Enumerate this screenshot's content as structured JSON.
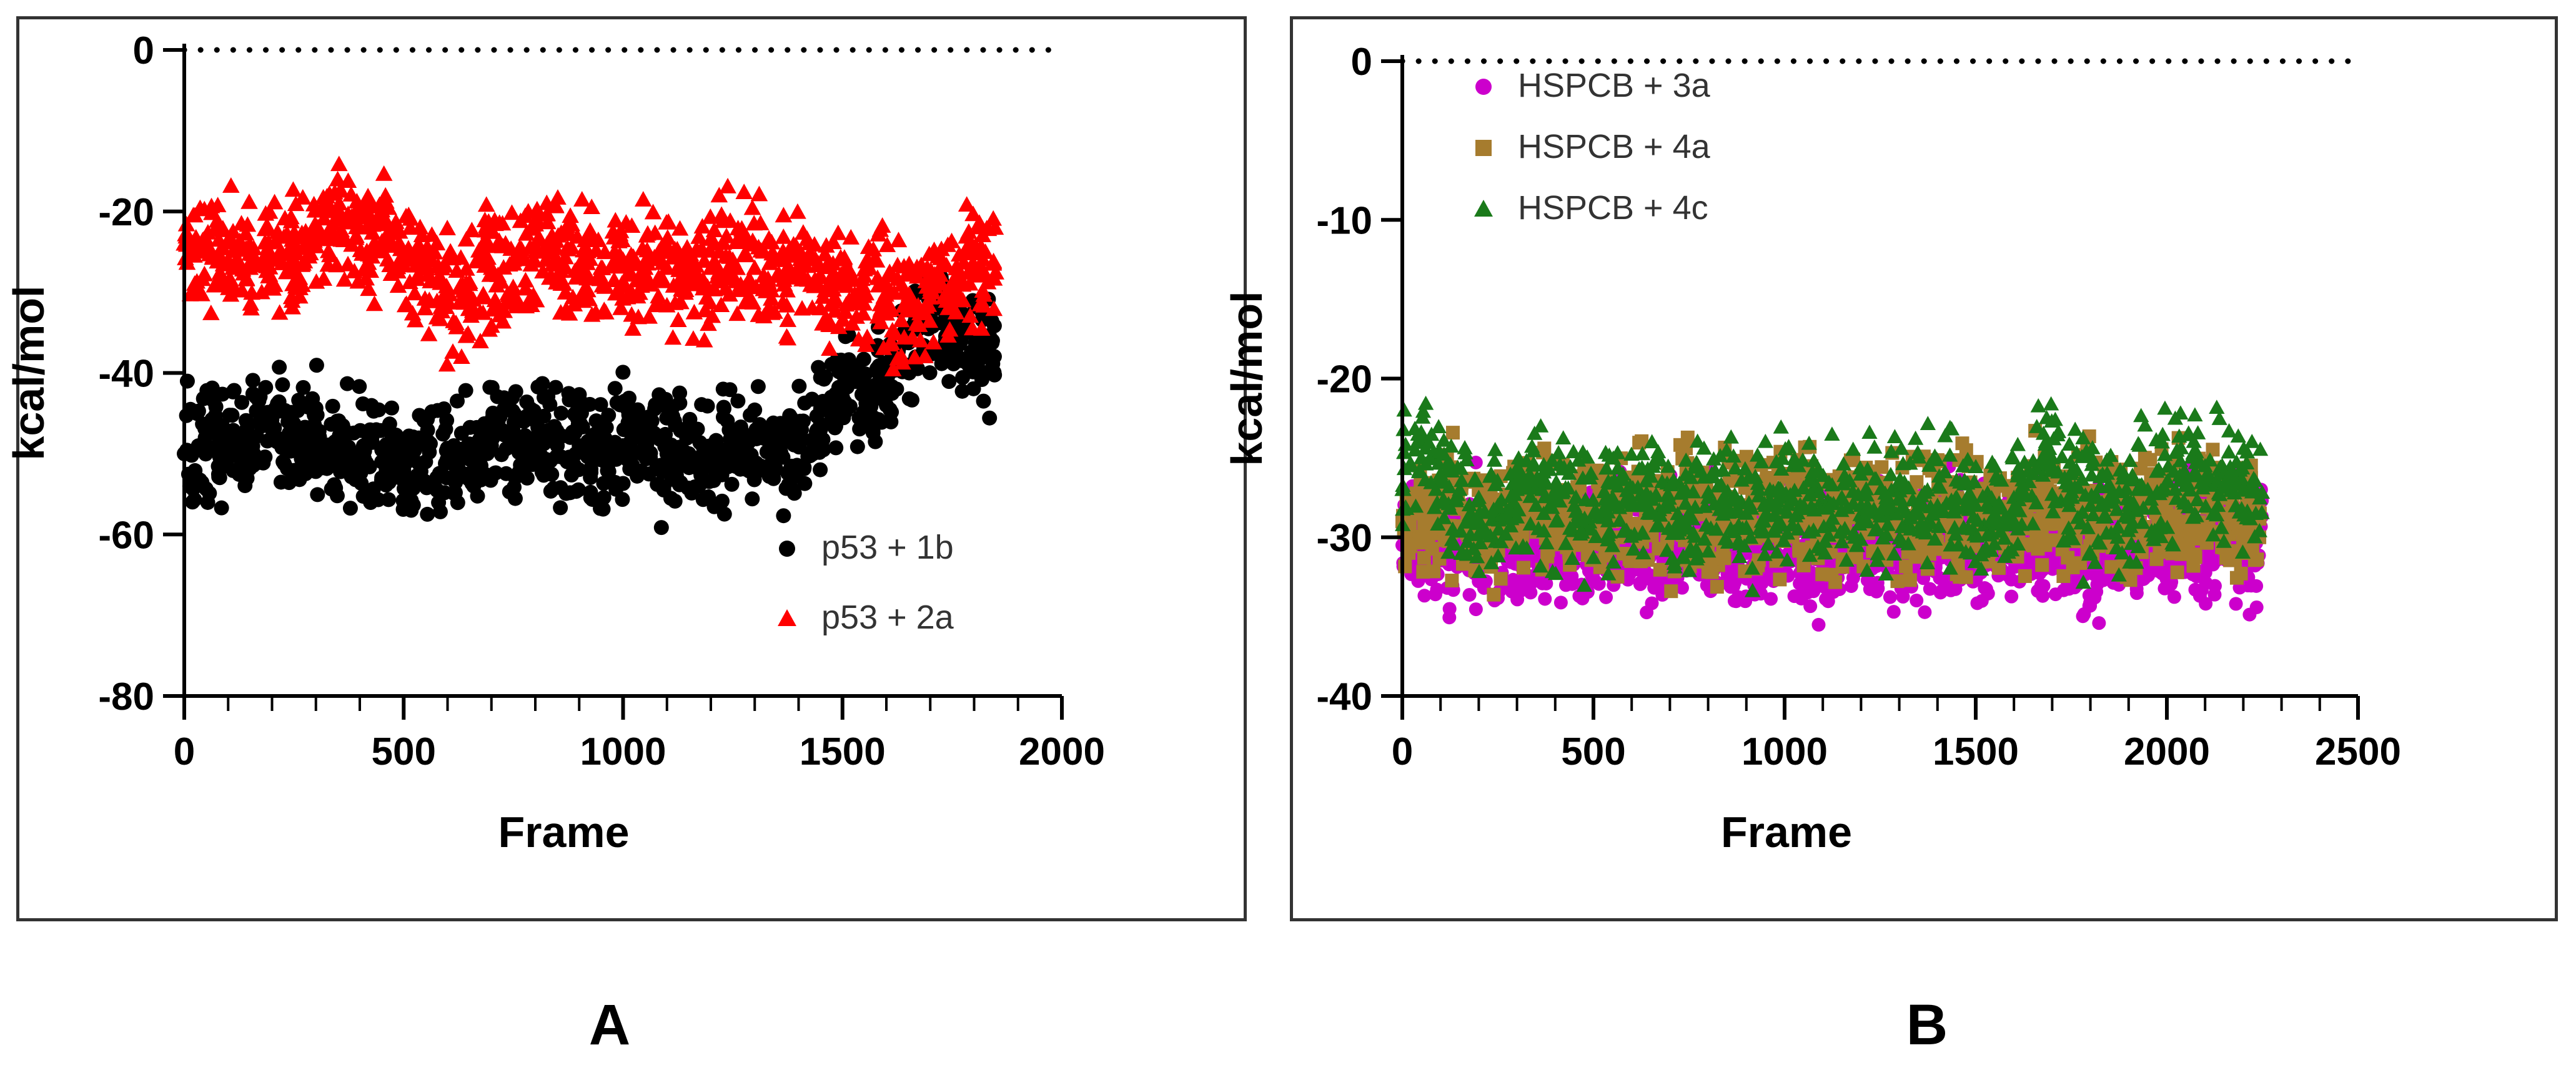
{
  "figure": {
    "panel_a_label": "A",
    "panel_b_label": "B"
  },
  "chart_data": [
    {
      "type": "scatter",
      "panel": "A",
      "xlabel": "Frame",
      "ylabel": "kcal/mol",
      "xlim": [
        0,
        2000
      ],
      "ylim": [
        -80,
        0
      ],
      "xticks": [
        0,
        500,
        1000,
        1500,
        2000
      ],
      "yticks": [
        0,
        -20,
        -40,
        -60,
        -80
      ],
      "reference_line": {
        "y": 0,
        "style": "dotted"
      },
      "legend_position": "bottom-right",
      "series": [
        {
          "name": "p53 + 1b",
          "color": "#000000",
          "marker": "circle",
          "x": [
            0,
            50,
            100,
            150,
            200,
            250,
            300,
            350,
            400,
            450,
            500,
            550,
            600,
            650,
            700,
            750,
            800,
            850,
            900,
            950,
            1000,
            1050,
            1100,
            1150,
            1200,
            1250,
            1300,
            1350,
            1400,
            1450,
            1500,
            1550,
            1600,
            1650,
            1700,
            1750,
            1800
          ],
          "y": [
            -50,
            -49,
            -50,
            -48,
            -47,
            -48,
            -49,
            -50,
            -50,
            -51,
            -52,
            -51,
            -51,
            -50,
            -49,
            -48,
            -48,
            -49,
            -49,
            -50,
            -49,
            -49,
            -50,
            -50,
            -49,
            -49,
            -48,
            -49,
            -49,
            -47,
            -43,
            -42,
            -44,
            -36,
            -33,
            -35,
            -38
          ]
        },
        {
          "name": "p53 + 2a",
          "color": "#ff0000",
          "marker": "triangle",
          "x": [
            0,
            50,
            100,
            150,
            200,
            250,
            300,
            350,
            400,
            450,
            500,
            550,
            600,
            650,
            700,
            750,
            800,
            850,
            900,
            950,
            1000,
            1050,
            1100,
            1150,
            1200,
            1250,
            1300,
            1350,
            1400,
            1450,
            1500,
            1550,
            1600,
            1650,
            1700,
            1750,
            1800
          ],
          "y": [
            -24,
            -25,
            -26,
            -27,
            -26,
            -25,
            -23,
            -21,
            -22,
            -24,
            -26,
            -27,
            -31,
            -29,
            -27,
            -26,
            -25,
            -26,
            -27,
            -27,
            -26,
            -27,
            -27,
            -28,
            -27,
            -26,
            -27,
            -28,
            -27,
            -28,
            -29,
            -28,
            -30,
            -31,
            -30,
            -30,
            -27
          ]
        }
      ]
    },
    {
      "type": "scatter",
      "panel": "B",
      "xlabel": "Frame",
      "ylabel": "kcal/mol",
      "xlim": [
        0,
        2500
      ],
      "ylim": [
        -40,
        0
      ],
      "xticks": [
        0,
        500,
        1000,
        1500,
        2000,
        2500
      ],
      "yticks": [
        0,
        -10,
        -20,
        -30,
        -40
      ],
      "reference_line": {
        "y": 0,
        "style": "dotted"
      },
      "legend_position": "top-left",
      "series": [
        {
          "name": "HSPCB + 3a",
          "color": "#cc00cc",
          "marker": "circle",
          "x": [
            0,
            50,
            100,
            150,
            200,
            250,
            300,
            350,
            400,
            450,
            500,
            550,
            600,
            650,
            700,
            750,
            800,
            850,
            900,
            950,
            1000,
            1050,
            1100,
            1150,
            1200,
            1250,
            1300,
            1350,
            1400,
            1450,
            1500,
            1550,
            1600,
            1650,
            1700,
            1750,
            1800,
            1850,
            1900,
            1950,
            2000,
            2050,
            2100,
            2150,
            2200
          ],
          "y": [
            -30.5,
            -30,
            -31,
            -30.5,
            -30,
            -30.5,
            -31,
            -30,
            -30.5,
            -31,
            -30.5,
            -30,
            -30.5,
            -31,
            -30,
            -30.5,
            -30,
            -30.5,
            -31,
            -30.5,
            -30,
            -30.5,
            -31,
            -30,
            -30.5,
            -30,
            -30.5,
            -31,
            -30.5,
            -30,
            -30.5,
            -31,
            -30,
            -30.5,
            -30,
            -30.5,
            -31,
            -30.5,
            -30,
            -30.5,
            -31,
            -30,
            -30.5,
            -30,
            -30.5
          ]
        },
        {
          "name": "HSPCB + 4a",
          "color": "#a67c2e",
          "marker": "square",
          "x": [
            0,
            50,
            100,
            150,
            200,
            250,
            300,
            350,
            400,
            450,
            500,
            550,
            600,
            650,
            700,
            750,
            800,
            850,
            900,
            950,
            1000,
            1050,
            1100,
            1150,
            1200,
            1250,
            1300,
            1350,
            1400,
            1450,
            1500,
            1550,
            1600,
            1650,
            1700,
            1750,
            1800,
            1850,
            1900,
            1950,
            2000,
            2050,
            2100,
            2150,
            2200
          ],
          "y": [
            -29,
            -28.5,
            -29,
            -28,
            -28.5,
            -29,
            -28,
            -28.5,
            -29,
            -28,
            -28.5,
            -29,
            -28,
            -28.5,
            -29,
            -28,
            -28.5,
            -29,
            -28,
            -28.5,
            -29,
            -28,
            -28.5,
            -29,
            -28,
            -28.5,
            -29,
            -28,
            -28.5,
            -29,
            -28,
            -28.5,
            -29,
            -28,
            -28.5,
            -29,
            -28,
            -28.5,
            -29,
            -28,
            -28.5,
            -29,
            -28,
            -28.5,
            -29
          ]
        },
        {
          "name": "HSPCB + 4c",
          "color": "#1a7a1a",
          "marker": "triangle",
          "x": [
            0,
            50,
            100,
            150,
            200,
            250,
            300,
            350,
            400,
            450,
            500,
            550,
            600,
            650,
            700,
            750,
            800,
            850,
            900,
            950,
            1000,
            1050,
            1100,
            1150,
            1200,
            1250,
            1300,
            1350,
            1400,
            1450,
            1500,
            1550,
            1600,
            1650,
            1700,
            1750,
            1800,
            1850,
            1900,
            1950,
            2000,
            2050,
            2100,
            2150,
            2200
          ],
          "y": [
            -27,
            -25,
            -26,
            -27,
            -27.5,
            -28,
            -27,
            -28,
            -27.5,
            -28,
            -28.5,
            -27.5,
            -28,
            -27.5,
            -28,
            -28.5,
            -27.5,
            -28,
            -28.5,
            -28,
            -27.5,
            -28,
            -28,
            -27.5,
            -28,
            -28.5,
            -27.5,
            -28,
            -28,
            -27.5,
            -28,
            -28.5,
            -27.5,
            -26,
            -25,
            -27.5,
            -28,
            -27.5,
            -28,
            -27,
            -26.5,
            -26,
            -25.5,
            -26,
            -27
          ]
        }
      ]
    }
  ]
}
